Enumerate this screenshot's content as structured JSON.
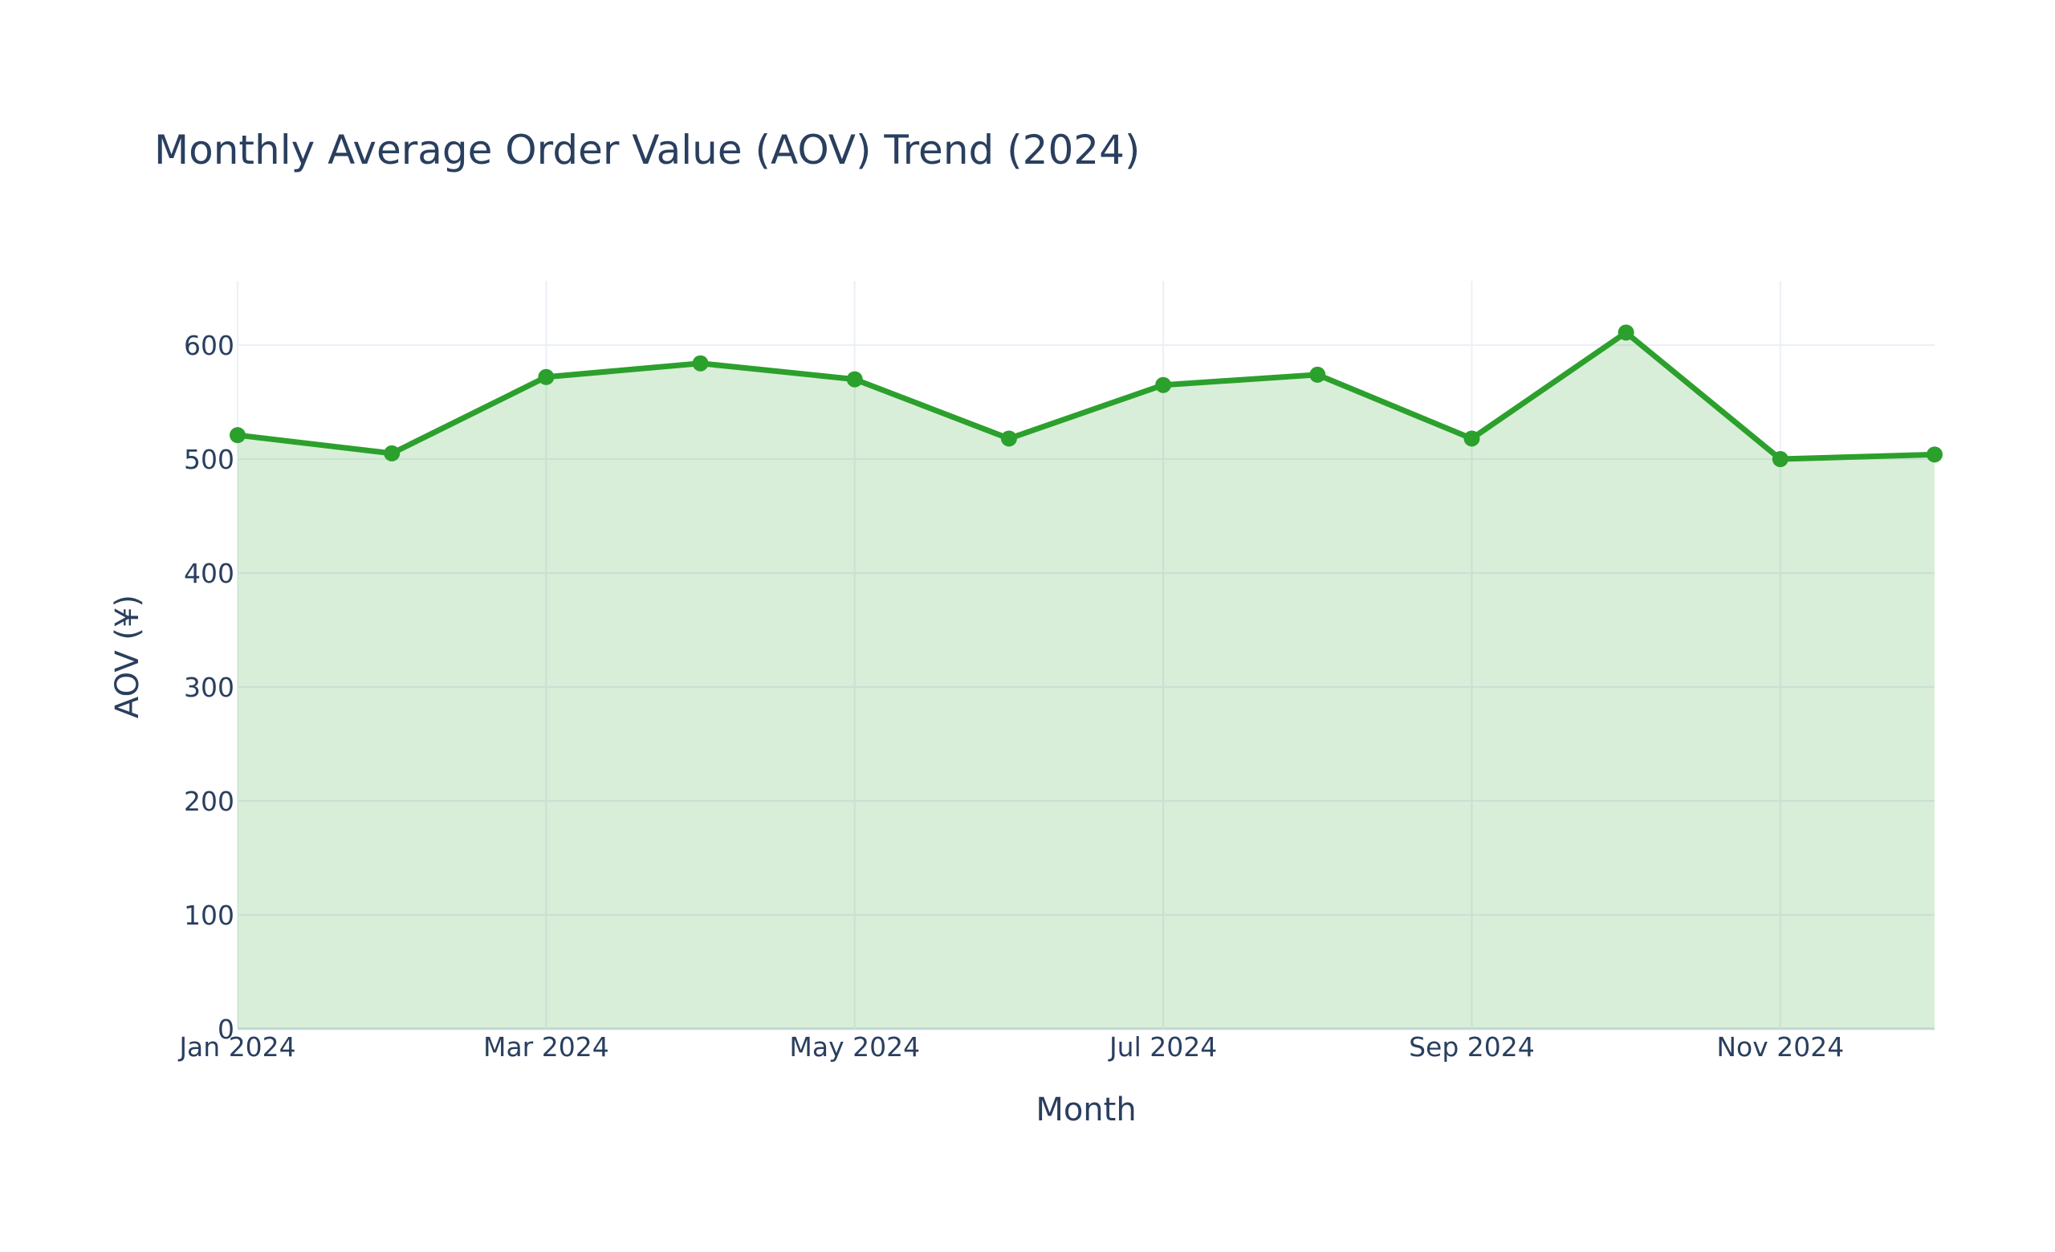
{
  "chart_data": {
    "type": "area",
    "title": "Monthly Average Order Value (AOV) Trend (2024)",
    "xlabel": "Month",
    "ylabel": "AOV (¥)",
    "x": [
      "Jan 2024",
      "Feb 2024",
      "Mar 2024",
      "Apr 2024",
      "May 2024",
      "Jun 2024",
      "Jul 2024",
      "Aug 2024",
      "Sep 2024",
      "Oct 2024",
      "Nov 2024",
      "Dec 2024"
    ],
    "series": [
      {
        "name": "AOV",
        "values": [
          521,
          505,
          572,
          584,
          570,
          518,
          565,
          574,
          518,
          611,
          500,
          504
        ],
        "color": "#2ca02c",
        "fill": "tozeroy",
        "mode": "lines+markers"
      }
    ],
    "x_tick_labels": [
      "Jan 2024",
      "Mar 2024",
      "May 2024",
      "Jul 2024",
      "Sep 2024",
      "Nov 2024"
    ],
    "y_tick_labels": [
      "0",
      "100",
      "200",
      "300",
      "400",
      "500",
      "600"
    ],
    "ylim": [
      0,
      655
    ],
    "grid": true,
    "legend": false
  }
}
